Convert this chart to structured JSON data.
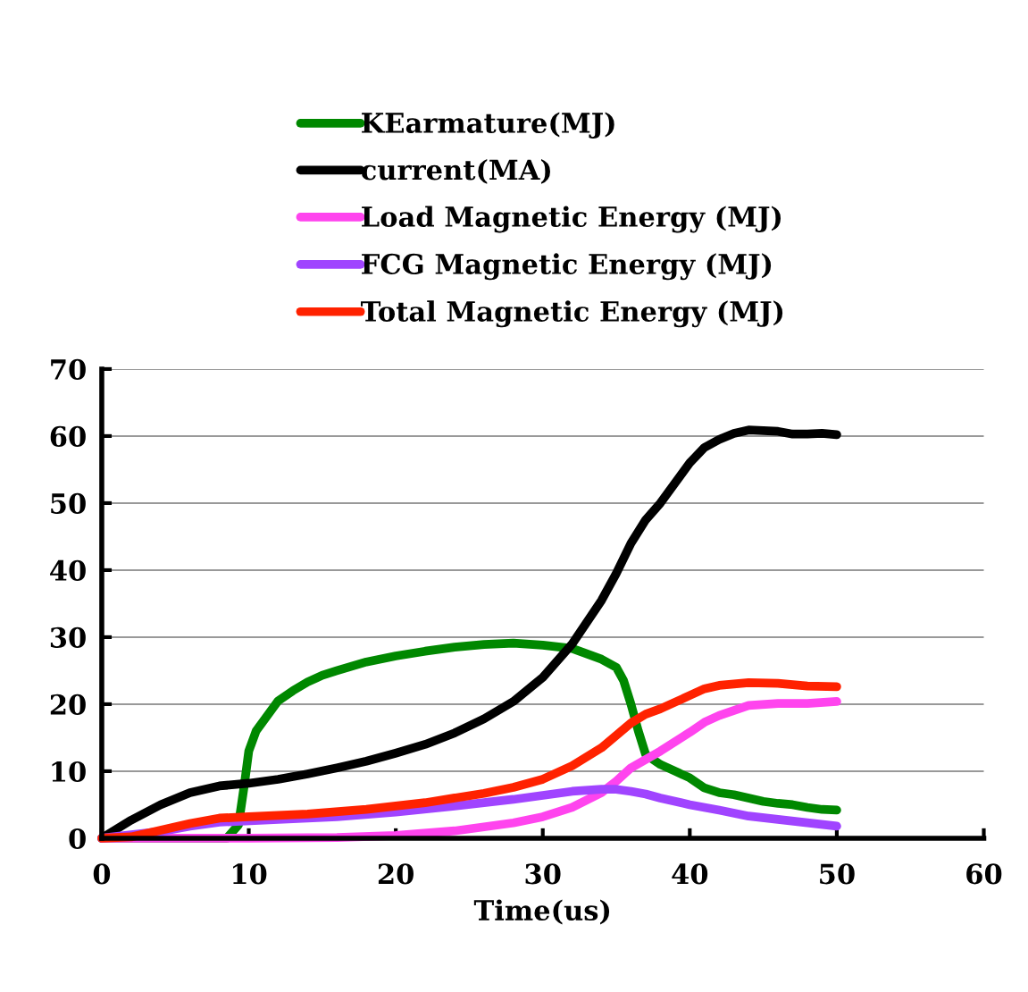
{
  "chart_data": {
    "type": "line",
    "xlabel": "Time(us)",
    "xlim": [
      0,
      60
    ],
    "xticks": [
      0,
      10,
      20,
      30,
      40,
      50,
      60
    ],
    "ylim": [
      0,
      70
    ],
    "yticks": [
      0,
      10,
      20,
      30,
      40,
      50,
      60,
      70
    ],
    "grid": "y",
    "legend": "top",
    "line_style": "solid",
    "marker": "none",
    "series": [
      {
        "name": "KEarmature(MJ)",
        "color": "#008800",
        "x": [
          0,
          8.5,
          9.3,
          9.7,
          10,
          10.5,
          11,
          12,
          13,
          14,
          15,
          16,
          18,
          20,
          22,
          24,
          26,
          28,
          30,
          32,
          33,
          34,
          35,
          35.5,
          36,
          36.5,
          37,
          38,
          39,
          40,
          41,
          42,
          43,
          44,
          45,
          46,
          47,
          48,
          49,
          50
        ],
        "values": [
          0,
          0,
          2,
          8,
          13,
          16,
          17.5,
          20.5,
          22,
          23.3,
          24.3,
          25,
          26.3,
          27.2,
          27.9,
          28.5,
          28.9,
          29.1,
          28.8,
          28.3,
          27.5,
          26.7,
          25.5,
          23.5,
          20,
          16,
          12.5,
          11,
          10,
          9,
          7.5,
          6.8,
          6.5,
          6,
          5.5,
          5.2,
          5,
          4.6,
          4.3,
          4.2
        ]
      },
      {
        "name": "current(MA)",
        "color": "#000000",
        "x": [
          0,
          2,
          4,
          6,
          8,
          10,
          12,
          14,
          16,
          18,
          20,
          22,
          24,
          26,
          28,
          30,
          32,
          34,
          35,
          36,
          37,
          38,
          39,
          40,
          41,
          42,
          43,
          44,
          45,
          46,
          47,
          48,
          49,
          50
        ],
        "values": [
          0,
          2.7,
          5,
          6.8,
          7.8,
          8.2,
          8.8,
          9.6,
          10.5,
          11.5,
          12.7,
          14,
          15.7,
          17.8,
          20.4,
          24,
          29,
          35.5,
          39.5,
          44,
          47.5,
          50,
          53,
          56,
          58.3,
          59.5,
          60.4,
          60.9,
          60.8,
          60.7,
          60.3,
          60.3,
          60.4,
          60.2
        ]
      },
      {
        "name": "Load Magnetic Energy (MJ)",
        "color": "#ff44ee",
        "x": [
          0,
          10,
          16,
          20,
          24,
          28,
          30,
          32,
          34,
          35,
          36,
          38,
          40,
          41,
          42,
          44,
          46,
          48,
          50
        ],
        "values": [
          0,
          0,
          0.1,
          0.4,
          1.1,
          2.3,
          3.2,
          4.6,
          6.8,
          8.5,
          10.5,
          13,
          15.8,
          17.3,
          18.3,
          19.8,
          20.1,
          20.1,
          20.4
        ]
      },
      {
        "name": "FCG Magnetic Energy (MJ)",
        "color": "#a044ff",
        "x": [
          0,
          4,
          6,
          8,
          12,
          16,
          20,
          24,
          28,
          30,
          32,
          34,
          35,
          36,
          37,
          38,
          40,
          42,
          44,
          46,
          48,
          50
        ],
        "values": [
          0,
          1,
          1.8,
          2.4,
          2.8,
          3.2,
          3.9,
          4.8,
          5.8,
          6.4,
          7,
          7.3,
          7.3,
          7,
          6.6,
          6,
          5,
          4.2,
          3.3,
          2.8,
          2.3,
          1.8
        ]
      },
      {
        "name": "Total Magnetic Energy (MJ)",
        "color": "#ff2200",
        "x": [
          0,
          2,
          4,
          6,
          8,
          10,
          14,
          18,
          22,
          26,
          28,
          30,
          32,
          34,
          36,
          37,
          38,
          40,
          41,
          42,
          44,
          46,
          48,
          50
        ],
        "values": [
          0,
          0.2,
          1.2,
          2.2,
          3,
          3.2,
          3.6,
          4.3,
          5.3,
          6.7,
          7.6,
          8.8,
          10.8,
          13.5,
          17.2,
          18.5,
          19.3,
          21.3,
          22.3,
          22.8,
          23.2,
          23.1,
          22.7,
          22.6
        ]
      }
    ]
  }
}
